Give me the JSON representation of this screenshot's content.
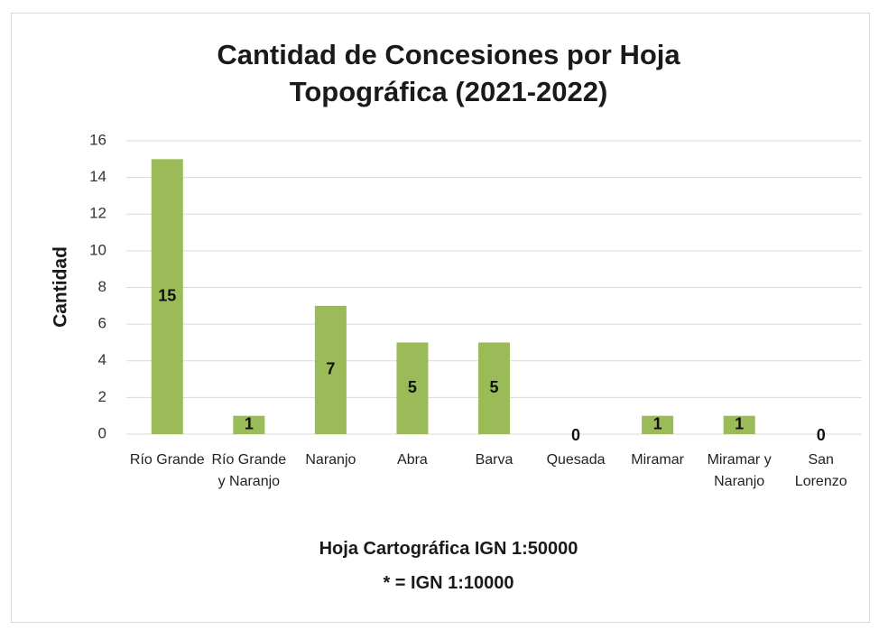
{
  "chart_data": {
    "type": "bar",
    "title": "Cantidad de Concesiones por Hoja Topográfica (2021-2022)",
    "y_label": "Cantidad",
    "x_label": [
      "Hoja Cartográfica IGN 1:50000",
      "* = IGN 1:10000"
    ],
    "categories": [
      "Río Grande",
      "Río Grande y Naranjo",
      "Naranjo",
      "Abra",
      "Barva",
      "Quesada",
      "Miramar",
      "Miramar y Naranjo",
      "San Lorenzo"
    ],
    "values": [
      15,
      1,
      7,
      5,
      5,
      0,
      1,
      1,
      0
    ],
    "color": "#9bbb59",
    "ylim": [
      0,
      16
    ],
    "yticks": [
      0,
      2,
      4,
      6,
      8,
      10,
      12,
      14,
      16
    ],
    "grid": true
  }
}
